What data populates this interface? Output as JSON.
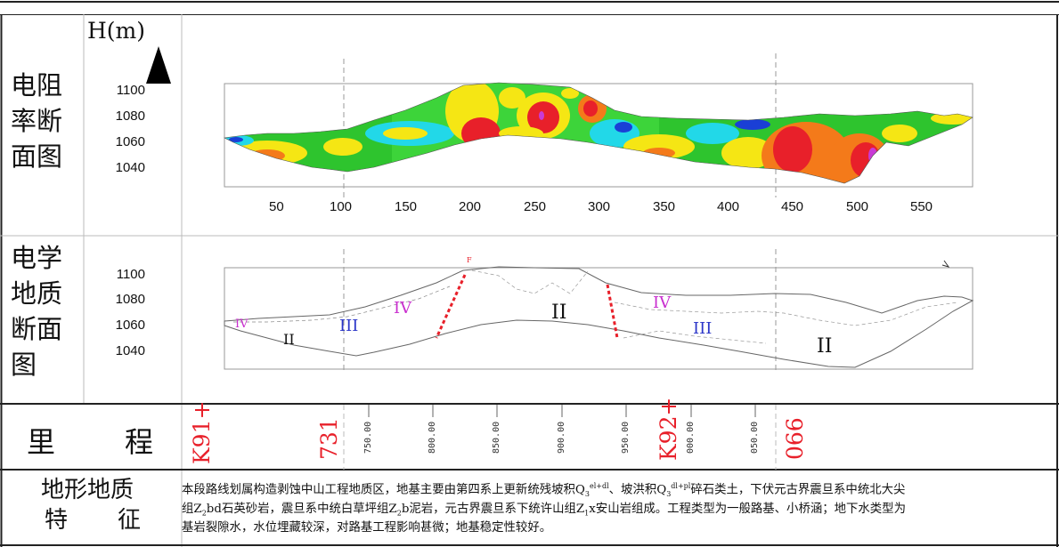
{
  "resistivity_section": {
    "title_lines": [
      "电阻",
      "率断",
      "面图"
    ],
    "y_axis_label": "H(m)",
    "y_ticks": [
      "1100",
      "1080",
      "1060",
      "1040"
    ],
    "x_ticks": [
      "50",
      "100",
      "150",
      "200",
      "250",
      "300",
      "350",
      "400",
      "450",
      "500",
      "550"
    ]
  },
  "geology_section": {
    "title_lines": [
      "电学",
      "地质",
      "断面",
      "图"
    ],
    "y_ticks": [
      "1100",
      "1080",
      "1060",
      "1040"
    ],
    "labels": {
      "iv_left": "IV",
      "ii_left": "II",
      "iii_left": "III",
      "iv_mid": "IV",
      "ii_mid": "II",
      "iv_right": "IV",
      "iii_right": "III",
      "ii_right": "II",
      "fault": "F"
    }
  },
  "mileage": {
    "title_left": "里",
    "title_right": "程",
    "k91": "K91+",
    "m731": "731",
    "t750": "750.00",
    "t800": "800.00",
    "t850": "850.00",
    "t900": "900.00",
    "t950": "950.00",
    "k92": "K92+",
    "t000": "000.00",
    "t050": "050.00",
    "m066": "066"
  },
  "terrain": {
    "title_line1": "地形地质",
    "title_line2_a": "特",
    "title_line2_b": "征",
    "line1_a": "本段路线划属构造剥蚀中山工程地质区，地基主要由第四系上更新统残坡积Q",
    "line1_sub1": "3",
    "line1_sup1": "el+dl",
    "line1_b": "、坡洪积Q",
    "line1_sub2": "3",
    "line1_sup2": "dl+pl",
    "line1_c": "碎石类土，下伏元古界震旦系中统北大尖",
    "line2_a": "组Z",
    "line2_sub1": "2",
    "line2_b": "bd石英砂岩，震旦系中统白草坪组Z",
    "line2_sub2": "2",
    "line2_c": "b泥岩，元古界震旦系下统许山组Z",
    "line2_sub3": "1",
    "line2_d": "x安山岩组成。工程类型为一般路基、小桥涵；地下水类型为",
    "line3": "基岩裂隙水，水位埋藏较深，对路基工程影响甚微；地基稳定性较好。"
  },
  "colors": {
    "red": "#e8202a",
    "orange": "#f47a1a",
    "yellow": "#f5e614",
    "green": "#2ec42e",
    "cyan": "#22d8e8",
    "blue": "#1a3fd6",
    "magenta": "#c93ad6",
    "roman_blue": "#2a35c8",
    "roman_magenta": "#c92fcf"
  }
}
